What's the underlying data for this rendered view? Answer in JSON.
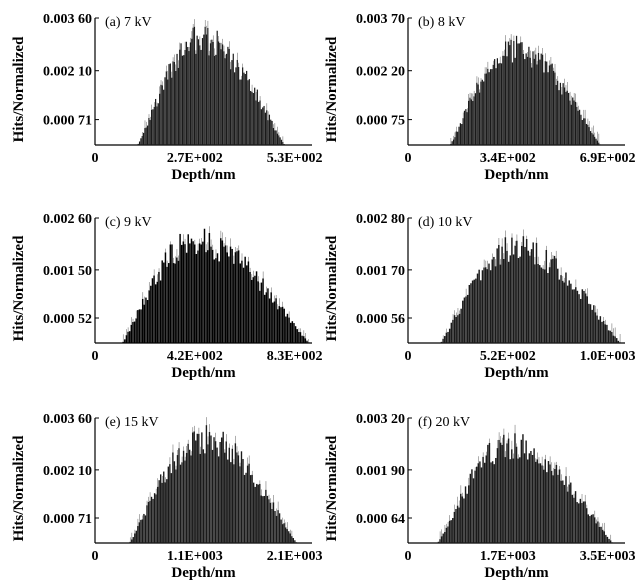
{
  "figure": {
    "panels_count": 6
  },
  "chart_data": [
    {
      "type": "bar",
      "title": "(a) 7 kV",
      "xlabel": "Depth/nm",
      "ylabel": "Hits/Normalized",
      "xtick_labels": [
        "0",
        "2.7E+002",
        "5.3E+002"
      ],
      "ytick_labels": [
        "0.003 60",
        "0.002 10",
        "0.000 71"
      ],
      "x_range": [
        0,
        560
      ],
      "ylim": [
        0,
        0.0036
      ],
      "distribution": {
        "start": 110,
        "peak": 275,
        "end": 490,
        "peak_value": 0.0031,
        "bins": 110
      },
      "color": "#1a1a1a"
    },
    {
      "type": "bar",
      "title": "(b) 8 kV",
      "xlabel": "Depth/nm",
      "ylabel": "Hits/Normalized",
      "xtick_labels": [
        "0",
        "3.4E+002",
        "6.9E+002"
      ],
      "ytick_labels": [
        "0.003 70",
        "0.002 20",
        "0.000 75"
      ],
      "x_range": [
        0,
        720
      ],
      "ylim": [
        0,
        0.0037
      ],
      "distribution": {
        "start": 140,
        "peak": 350,
        "end": 640,
        "peak_value": 0.0029,
        "bins": 110
      },
      "color": "#1a1a1a"
    },
    {
      "type": "bar",
      "title": "(c) 9 kV",
      "xlabel": "Depth/nm",
      "ylabel": "Hits/Normalized",
      "xtick_labels": [
        "0",
        "4.2E+002",
        "8.3E+002"
      ],
      "ytick_labels": [
        "0.002 60",
        "0.001 50",
        "0.000 52"
      ],
      "x_range": [
        0,
        870
      ],
      "ylim": [
        0,
        0.0026
      ],
      "distribution": {
        "start": 110,
        "peak": 400,
        "end": 860,
        "peak_value": 0.0022,
        "bins": 115
      },
      "color": "#000000"
    },
    {
      "type": "bar",
      "title": "(d) 10 kV",
      "xlabel": "Depth/nm",
      "ylabel": "Hits/Normalized",
      "xtick_labels": [
        "0",
        "5.2E+002",
        "1.0E+003"
      ],
      "ytick_labels": [
        "0.002 80",
        "0.001 70",
        "0.000 56"
      ],
      "x_range": [
        0,
        1060
      ],
      "ylim": [
        0,
        0.0028
      ],
      "distribution": {
        "start": 160,
        "peak": 520,
        "end": 1040,
        "peak_value": 0.0022,
        "bins": 110
      },
      "color": "#1a1a1a"
    },
    {
      "type": "bar",
      "title": "(e) 15 kV",
      "xlabel": "Depth/nm",
      "ylabel": "Hits/Normalized",
      "xtick_labels": [
        "0",
        "1.1E+003",
        "2.1E+003"
      ],
      "ytick_labels": [
        "0.003 60",
        "0.002 10",
        "0.000 71"
      ],
      "x_range": [
        0,
        2200
      ],
      "ylim": [
        0,
        0.0036
      ],
      "distribution": {
        "start": 350,
        "peak": 1100,
        "end": 2050,
        "peak_value": 0.0031,
        "bins": 110
      },
      "color": "#1a1a1a"
    },
    {
      "type": "bar",
      "title": "(f) 20 kV",
      "xlabel": "Depth/nm",
      "ylabel": "Hits/Normalized",
      "xtick_labels": [
        "0",
        "1.7E+003",
        "3.5E+003"
      ],
      "ytick_labels": [
        "0.003 20",
        "0.001 90",
        "0.000 64"
      ],
      "x_range": [
        0,
        3650
      ],
      "ylim": [
        0,
        0.0032
      ],
      "distribution": {
        "start": 500,
        "peak": 1700,
        "end": 3450,
        "peak_value": 0.0026,
        "bins": 110
      },
      "color": "#1a1a1a"
    }
  ]
}
